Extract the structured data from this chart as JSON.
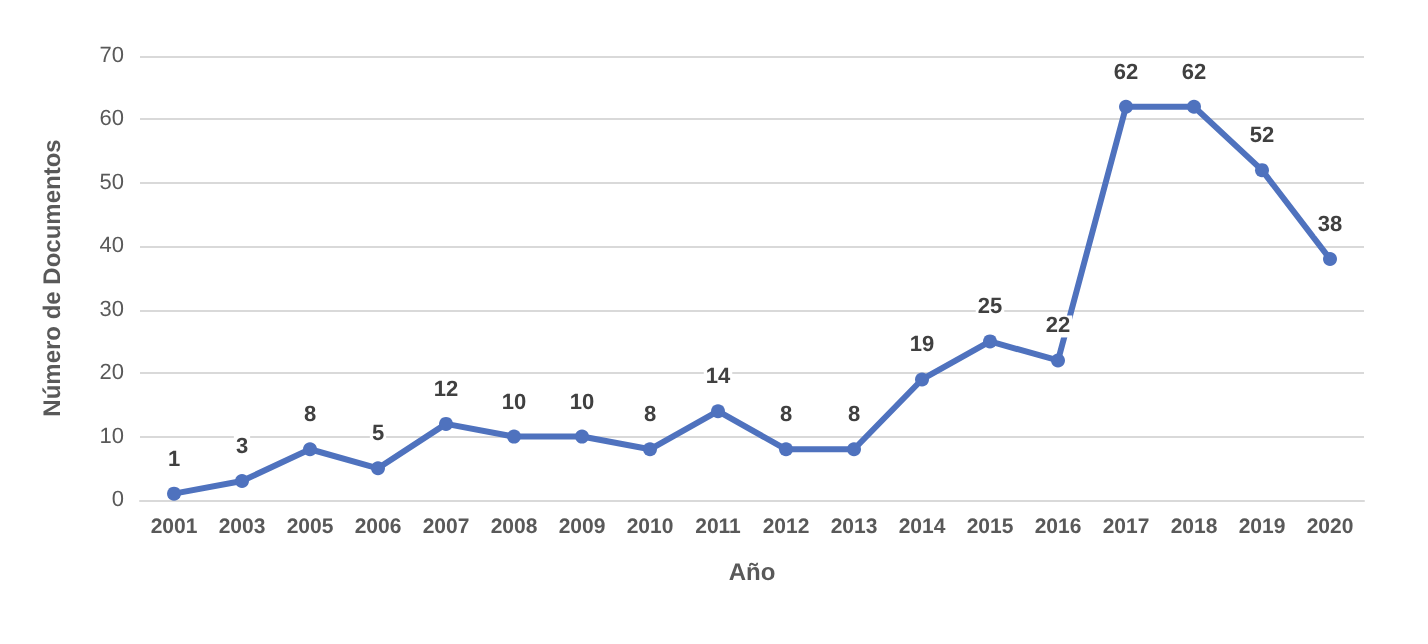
{
  "chart_data": {
    "type": "line",
    "xlabel": "Año",
    "ylabel": "Número de Documentos",
    "categories": [
      "2001",
      "2003",
      "2005",
      "2006",
      "2007",
      "2008",
      "2009",
      "2010",
      "2011",
      "2012",
      "2013",
      "2014",
      "2015",
      "2016",
      "2017",
      "2018",
      "2019",
      "2020"
    ],
    "series": [
      {
        "color": "#4f72be",
        "values": [
          1,
          3,
          8,
          5,
          12,
          10,
          10,
          8,
          14,
          8,
          8,
          19,
          25,
          22,
          62,
          62,
          52,
          38
        ]
      }
    ],
    "ylim": [
      0,
      70
    ],
    "yticks": [
      0,
      10,
      20,
      30,
      40,
      50,
      60,
      70
    ],
    "grid": "y",
    "marker": "circle",
    "line_style": "solid",
    "data_labels": true
  }
}
